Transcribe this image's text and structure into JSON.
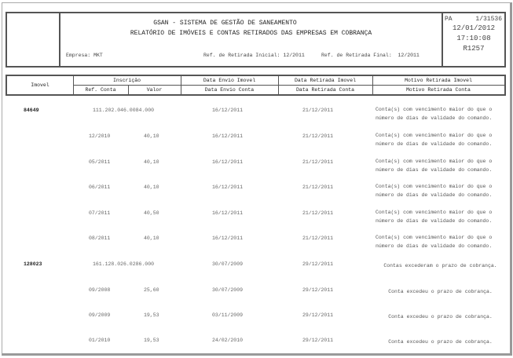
{
  "header": {
    "system_title": "GSAN - SISTEMA DE GESTÃO DE SANEAMENTO",
    "report_title": "RELATÓRIO DE IMÓVEIS E CONTAS RETIRADOS DAS EMPRESAS EM COBRANÇA",
    "empresa_label": "Empresa:",
    "empresa_value": "MKT",
    "ref_inicial_label": "Ref. de Retirada Inicial:",
    "ref_inicial_value": "12/2011",
    "ref_final_label": "Ref. de Retirada Final:",
    "ref_final_value": "12/2011",
    "state": "PA",
    "page": "1/31536",
    "date": "12/01/2012",
    "time": "17:10:08",
    "report_code": "R1257"
  },
  "columns": {
    "imovel": "Imovel",
    "inscricao": "Inscrição",
    "ref_conta": "Ref. Conta",
    "valor": "Valor",
    "data_envio_imovel": "Data Envio Imovel",
    "data_envio_conta": "Data Envio Conta",
    "data_retirada_imovel": "Data Retirada Imovel",
    "data_retirada_conta": "Data Retirada Conta",
    "motivo_imovel": "Motivo Retirada Imovel",
    "motivo_conta": "Motivo Retirada Conta"
  },
  "rows": [
    {
      "imovel": "84649",
      "inscricao": "111.202.046.0084.000",
      "ref": "",
      "valor": "",
      "envio": "16/12/2011",
      "retirada": "21/12/2011",
      "motivo": "Conta(s) com vencimento maior do que o número de dias de validade do comando."
    },
    {
      "imovel": "",
      "inscricao": "",
      "ref": "12/2010",
      "valor": "40,10",
      "envio": "16/12/2011",
      "retirada": "21/12/2011",
      "motivo": "Conta(s) com vencimento maior do que o número de dias de validade do comando."
    },
    {
      "imovel": "",
      "inscricao": "",
      "ref": "05/2011",
      "valor": "40,10",
      "envio": "16/12/2011",
      "retirada": "21/12/2011",
      "motivo": "Conta(s) com vencimento maior do que o número de dias de validade do comando."
    },
    {
      "imovel": "",
      "inscricao": "",
      "ref": "06/2011",
      "valor": "40,10",
      "envio": "16/12/2011",
      "retirada": "21/12/2011",
      "motivo": "Conta(s) com vencimento maior do que o número de dias de validade do comando."
    },
    {
      "imovel": "",
      "inscricao": "",
      "ref": "07/2011",
      "valor": "40,50",
      "envio": "16/12/2011",
      "retirada": "21/12/2011",
      "motivo": "Conta(s) com vencimento maior do que o número de dias de validade do comando."
    },
    {
      "imovel": "",
      "inscricao": "",
      "ref": "08/2011",
      "valor": "40,10",
      "envio": "16/12/2011",
      "retirada": "21/12/2011",
      "motivo": "Conta(s) com vencimento maior do que o número de dias de validade do comando."
    },
    {
      "imovel": "128023",
      "inscricao": "161.128.026.0286.000",
      "ref": "",
      "valor": "",
      "envio": "30/07/2009",
      "retirada": "29/12/2011",
      "motivo": "Contas excederam o prazo de cobrança."
    },
    {
      "imovel": "",
      "inscricao": "",
      "ref": "09/2008",
      "valor": "25,60",
      "envio": "30/07/2009",
      "retirada": "29/12/2011",
      "motivo": "Conta excedeu o prazo de cobrança."
    },
    {
      "imovel": "",
      "inscricao": "",
      "ref": "09/2009",
      "valor": "19,53",
      "envio": "03/11/2009",
      "retirada": "29/12/2011",
      "motivo": "Conta excedeu o prazo de cobrança."
    },
    {
      "imovel": "",
      "inscricao": "",
      "ref": "01/2010",
      "valor": "19,53",
      "envio": "24/02/2010",
      "retirada": "29/12/2011",
      "motivo": "Conta excedeu o prazo de cobrança."
    }
  ]
}
